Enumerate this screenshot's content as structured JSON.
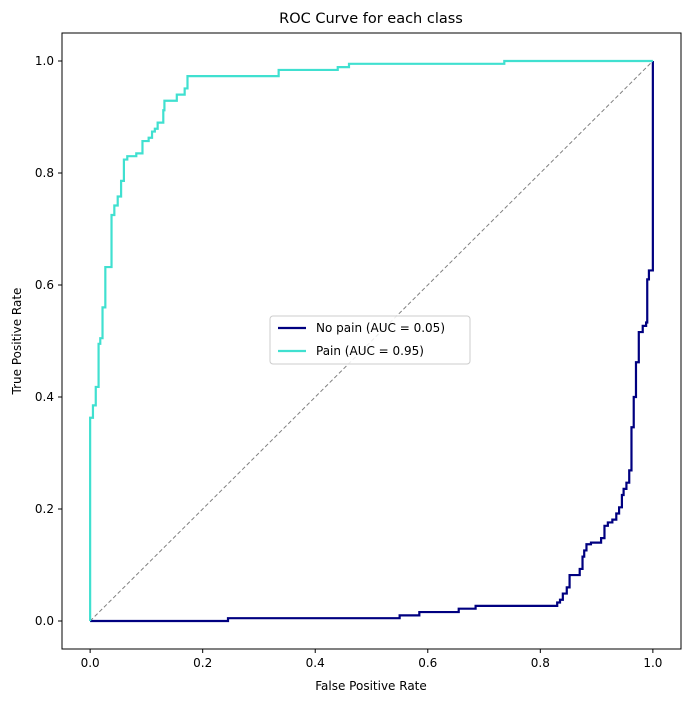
{
  "chart_data": {
    "type": "line",
    "title": "ROC Curve for each class",
    "xlabel": "False Positive Rate",
    "ylabel": "True Positive Rate",
    "xlim": [
      -0.05,
      1.05
    ],
    "ylim": [
      -0.05,
      1.05
    ],
    "xticks": [
      0.0,
      0.2,
      0.4,
      0.6,
      0.8,
      1.0
    ],
    "yticks": [
      0.0,
      0.2,
      0.4,
      0.6,
      0.8,
      1.0
    ],
    "xtick_labels": [
      "0.0",
      "0.2",
      "0.4",
      "0.6",
      "0.8",
      "1.0"
    ],
    "ytick_labels": [
      "0.0",
      "0.2",
      "0.4",
      "0.6",
      "0.8",
      "1.0"
    ],
    "grid": false,
    "legend_position": "center",
    "series": [
      {
        "name": "No pain (AUC = 0.05)",
        "color": "#000080",
        "step": true,
        "points": [
          [
            0.0,
            0.0
          ],
          [
            0.245,
            0.0
          ],
          [
            0.245,
            0.005
          ],
          [
            0.55,
            0.005
          ],
          [
            0.55,
            0.01
          ],
          [
            0.585,
            0.01
          ],
          [
            0.585,
            0.016
          ],
          [
            0.655,
            0.016
          ],
          [
            0.655,
            0.022
          ],
          [
            0.685,
            0.022
          ],
          [
            0.685,
            0.027
          ],
          [
            0.83,
            0.027
          ],
          [
            0.83,
            0.033
          ],
          [
            0.835,
            0.033
          ],
          [
            0.835,
            0.038
          ],
          [
            0.84,
            0.038
          ],
          [
            0.84,
            0.049
          ],
          [
            0.847,
            0.049
          ],
          [
            0.847,
            0.06
          ],
          [
            0.852,
            0.06
          ],
          [
            0.852,
            0.082
          ],
          [
            0.87,
            0.082
          ],
          [
            0.87,
            0.093
          ],
          [
            0.875,
            0.093
          ],
          [
            0.875,
            0.115
          ],
          [
            0.878,
            0.115
          ],
          [
            0.878,
            0.126
          ],
          [
            0.882,
            0.126
          ],
          [
            0.882,
            0.137
          ],
          [
            0.89,
            0.137
          ],
          [
            0.89,
            0.14
          ],
          [
            0.908,
            0.14
          ],
          [
            0.908,
            0.148
          ],
          [
            0.914,
            0.148
          ],
          [
            0.914,
            0.17
          ],
          [
            0.92,
            0.17
          ],
          [
            0.92,
            0.176
          ],
          [
            0.928,
            0.176
          ],
          [
            0.928,
            0.181
          ],
          [
            0.935,
            0.181
          ],
          [
            0.935,
            0.192
          ],
          [
            0.94,
            0.192
          ],
          [
            0.94,
            0.203
          ],
          [
            0.945,
            0.203
          ],
          [
            0.945,
            0.225
          ],
          [
            0.948,
            0.225
          ],
          [
            0.948,
            0.236
          ],
          [
            0.953,
            0.236
          ],
          [
            0.953,
            0.247
          ],
          [
            0.958,
            0.247
          ],
          [
            0.958,
            0.269
          ],
          [
            0.962,
            0.269
          ],
          [
            0.962,
            0.346
          ],
          [
            0.966,
            0.346
          ],
          [
            0.966,
            0.4
          ],
          [
            0.97,
            0.4
          ],
          [
            0.97,
            0.462
          ],
          [
            0.975,
            0.462
          ],
          [
            0.975,
            0.516
          ],
          [
            0.982,
            0.516
          ],
          [
            0.982,
            0.527
          ],
          [
            0.988,
            0.527
          ],
          [
            0.988,
            0.533
          ],
          [
            0.99,
            0.533
          ],
          [
            0.99,
            0.61
          ],
          [
            0.993,
            0.61
          ],
          [
            0.993,
            0.626
          ],
          [
            1.0,
            0.626
          ],
          [
            1.0,
            1.0
          ]
        ]
      },
      {
        "name": "Pain (AUC = 0.95)",
        "color": "#40e0d0",
        "step": true,
        "points": [
          [
            0.0,
            0.0
          ],
          [
            0.0,
            0.363
          ],
          [
            0.005,
            0.363
          ],
          [
            0.005,
            0.385
          ],
          [
            0.01,
            0.385
          ],
          [
            0.01,
            0.418
          ],
          [
            0.015,
            0.418
          ],
          [
            0.015,
            0.495
          ],
          [
            0.018,
            0.495
          ],
          [
            0.018,
            0.505
          ],
          [
            0.022,
            0.505
          ],
          [
            0.022,
            0.56
          ],
          [
            0.027,
            0.56
          ],
          [
            0.027,
            0.632
          ],
          [
            0.038,
            0.632
          ],
          [
            0.038,
            0.725
          ],
          [
            0.043,
            0.725
          ],
          [
            0.043,
            0.742
          ],
          [
            0.049,
            0.742
          ],
          [
            0.049,
            0.758
          ],
          [
            0.055,
            0.758
          ],
          [
            0.055,
            0.786
          ],
          [
            0.06,
            0.786
          ],
          [
            0.06,
            0.824
          ],
          [
            0.066,
            0.824
          ],
          [
            0.066,
            0.83
          ],
          [
            0.082,
            0.83
          ],
          [
            0.082,
            0.835
          ],
          [
            0.093,
            0.835
          ],
          [
            0.093,
            0.857
          ],
          [
            0.104,
            0.857
          ],
          [
            0.104,
            0.863
          ],
          [
            0.11,
            0.863
          ],
          [
            0.11,
            0.874
          ],
          [
            0.115,
            0.874
          ],
          [
            0.115,
            0.879
          ],
          [
            0.12,
            0.879
          ],
          [
            0.12,
            0.89
          ],
          [
            0.13,
            0.89
          ],
          [
            0.13,
            0.912
          ],
          [
            0.132,
            0.912
          ],
          [
            0.132,
            0.929
          ],
          [
            0.154,
            0.929
          ],
          [
            0.154,
            0.94
          ],
          [
            0.168,
            0.94
          ],
          [
            0.168,
            0.951
          ],
          [
            0.173,
            0.951
          ],
          [
            0.173,
            0.973
          ],
          [
            0.335,
            0.973
          ],
          [
            0.335,
            0.984
          ],
          [
            0.44,
            0.984
          ],
          [
            0.44,
            0.989
          ],
          [
            0.46,
            0.989
          ],
          [
            0.46,
            0.995
          ],
          [
            0.736,
            0.995
          ],
          [
            0.736,
            1.0
          ],
          [
            1.0,
            1.0
          ]
        ]
      }
    ],
    "diagonal": {
      "color": "#808080",
      "dashed": true,
      "from": [
        0,
        0
      ],
      "to": [
        1,
        1
      ]
    }
  }
}
